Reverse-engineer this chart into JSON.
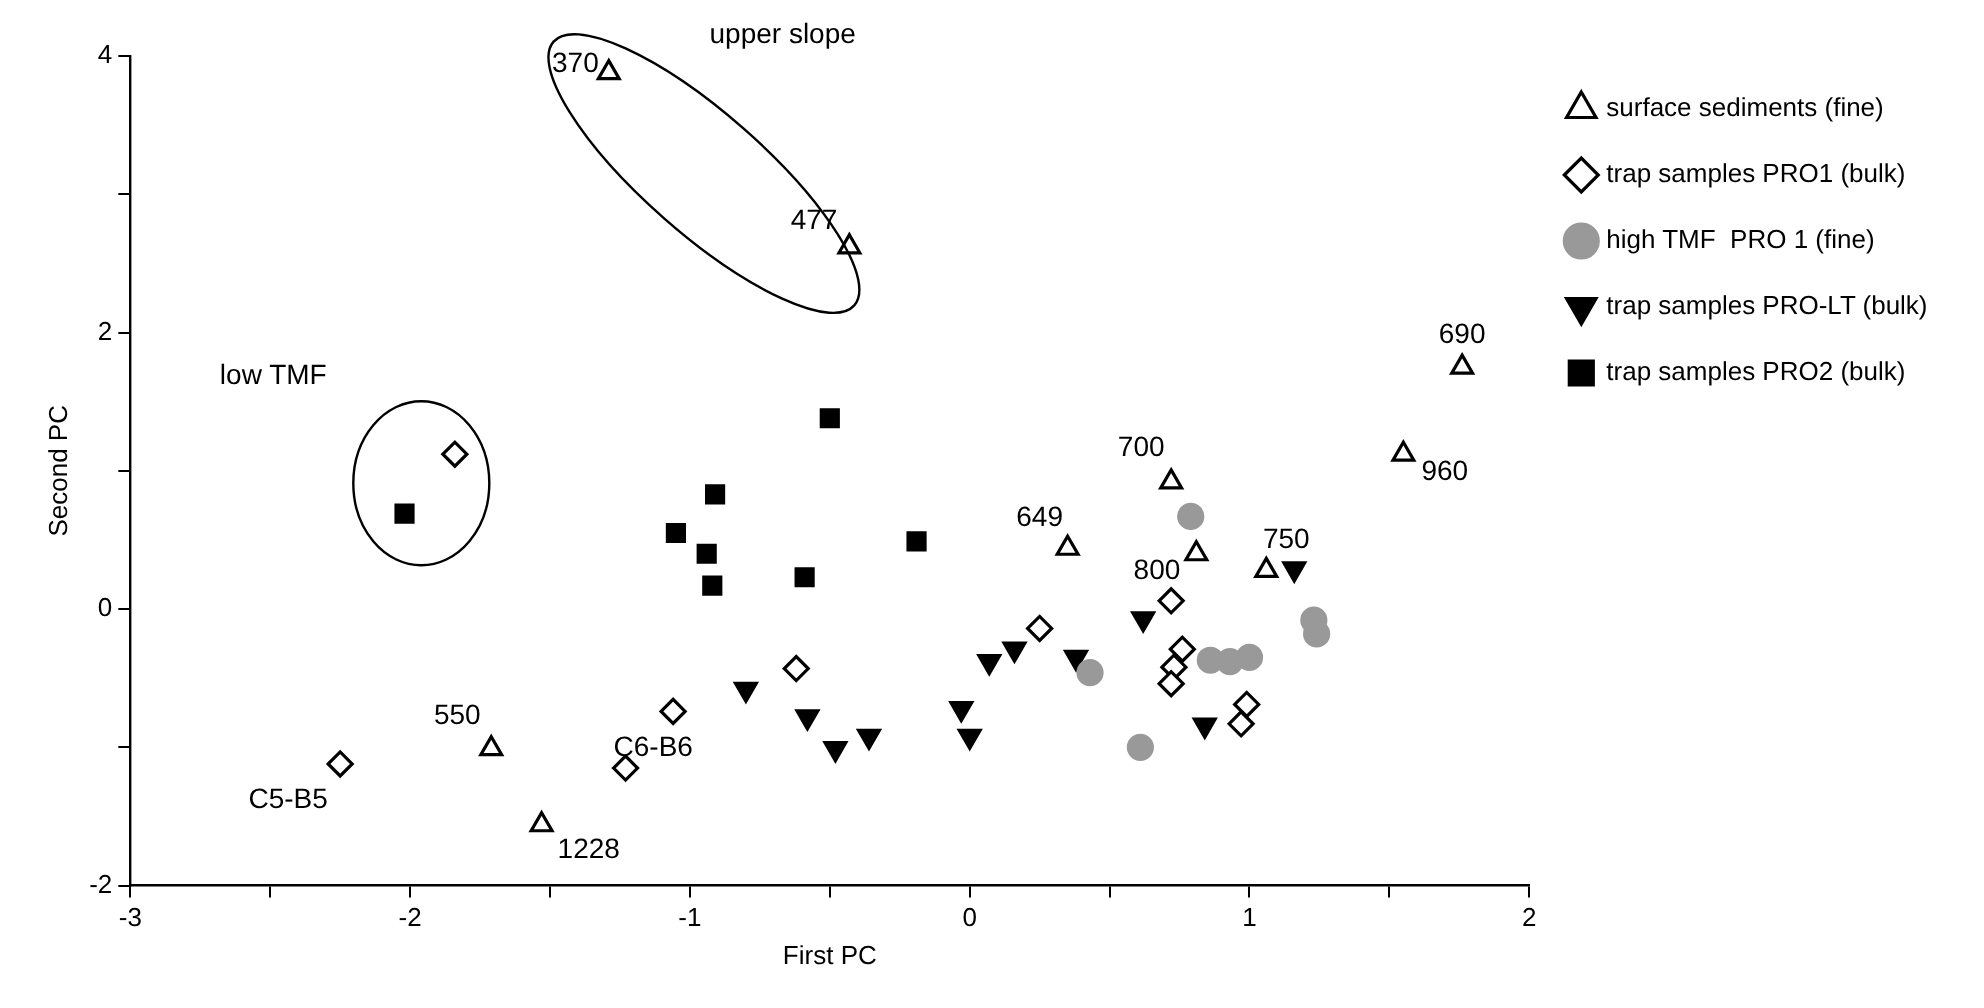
{
  "chart_data": {
    "type": "scatter",
    "xlabel": "First PC",
    "ylabel": "Second PC",
    "xlim": [
      -3,
      2
    ],
    "xticks": [
      -3,
      {
        "value": -2.5,
        "label": null
      },
      -2,
      {
        "value": -1.5,
        "label": null
      },
      -1,
      {
        "value": -0.5,
        "label": null
      },
      0,
      {
        "value": 0.5,
        "label": null
      },
      1,
      {
        "value": 1.5,
        "label": null
      },
      2
    ],
    "ylim": [
      -2,
      4
    ],
    "yticks": [
      -2,
      {
        "value": -1,
        "label": null
      },
      0,
      {
        "value": 1,
        "label": null
      },
      2,
      {
        "value": 3,
        "label": null
      },
      4
    ],
    "grid": false,
    "legend": "right",
    "series": [
      {
        "name": "surface sediments (fine)",
        "color": "#000000",
        "marker": "triangle-open",
        "x": [
          -1.29,
          -0.43,
          1.76,
          1.55,
          0.72,
          0.35,
          0.81,
          1.06,
          -1.71,
          -1.53
        ],
        "values": [
          3.88,
          2.62,
          1.75,
          1.12,
          0.92,
          0.44,
          0.4,
          0.28,
          -1.01,
          -1.56
        ]
      },
      {
        "name": "trap samples PRO1 (bulk)",
        "color": "#000000",
        "marker": "diamond-open",
        "x": [
          -1.84,
          -2.25,
          -1.06,
          -1.23,
          -0.62,
          0.25,
          0.72,
          0.76,
          0.73,
          0.72,
          0.99,
          0.97
        ],
        "values": [
          1.12,
          -1.12,
          -0.74,
          -1.15,
          -0.43,
          -0.14,
          0.06,
          -0.29,
          -0.42,
          -0.54,
          -0.69,
          -0.83
        ]
      },
      {
        "name": "high TMF  PRO 1 (fine)",
        "color": "#999999",
        "marker": "circle",
        "x": [
          0.79,
          1.23,
          1.24,
          0.43,
          0.86,
          0.93,
          1.0,
          0.61
        ],
        "values": [
          0.67,
          -0.08,
          -0.18,
          -0.46,
          -0.37,
          -0.38,
          -0.35,
          -1.0
        ]
      },
      {
        "name": "trap samples PRO-LT (bulk)",
        "color": "#000000",
        "marker": "triangle-down",
        "x": [
          1.16,
          0.62,
          0.38,
          0.16,
          0.07,
          -0.03,
          0.0,
          0.84,
          -0.8,
          -0.58,
          -0.48,
          -0.36
        ],
        "values": [
          0.29,
          -0.07,
          -0.35,
          -0.29,
          -0.38,
          -0.72,
          -0.92,
          -0.84,
          -0.58,
          -0.78,
          -1.01,
          -0.92
        ]
      },
      {
        "name": "trap samples PRO2 (bulk)",
        "color": "#000000",
        "marker": "square",
        "x": [
          -2.02,
          -0.5,
          -0.91,
          -1.05,
          -0.94,
          -0.92,
          -0.59,
          -0.19
        ],
        "values": [
          0.69,
          1.38,
          0.83,
          0.55,
          0.4,
          0.17,
          0.23,
          0.49
        ]
      }
    ],
    "annotations": [
      "upper slope",
      "low TMF",
      {
        "text": "370",
        "x": -1.29,
        "y": 3.88
      },
      {
        "text": "477",
        "x": -0.43,
        "y": 2.62
      },
      {
        "text": "690",
        "x": 1.76,
        "y": 1.75
      },
      {
        "text": "960",
        "x": 1.55,
        "y": 1.12
      },
      {
        "text": "700",
        "x": 0.72,
        "y": 0.92
      },
      {
        "text": "649",
        "x": 0.35,
        "y": 0.44
      },
      {
        "text": "800",
        "x": 0.81,
        "y": 0.4
      },
      {
        "text": "750",
        "x": 1.06,
        "y": 0.28
      },
      {
        "text": "550",
        "x": -1.71,
        "y": -1.01
      },
      {
        "text": "1228",
        "x": -1.53,
        "y": -1.56
      },
      {
        "text": "C5-B5",
        "x": -2.25,
        "y": -1.12
      },
      {
        "text": "C6-B6",
        "x": -1.23,
        "y": -1.15
      }
    ]
  }
}
